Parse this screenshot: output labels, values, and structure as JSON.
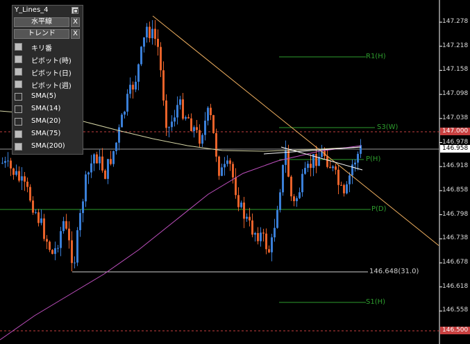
{
  "panel": {
    "title": "Y_Lines_4",
    "buttons": [
      {
        "label": "水平線",
        "close": "X"
      },
      {
        "label": "トレンド",
        "close": "X"
      }
    ],
    "indicators": [
      {
        "label": "キリ番",
        "checked": true
      },
      {
        "label": "ピボット(時)",
        "checked": true
      },
      {
        "label": "ピボット(日)",
        "checked": true
      },
      {
        "label": "ピボット(週)",
        "checked": true
      },
      {
        "label": "SMA(5)",
        "checked": false
      },
      {
        "label": "SMA(14)",
        "checked": false
      },
      {
        "label": "SMA(20)",
        "checked": false
      },
      {
        "label": "SMA(75)",
        "checked": true
      },
      {
        "label": "SMA(200)",
        "checked": true
      }
    ]
  },
  "price_axis": {
    "ticks": [
      "147.278",
      "147.218",
      "147.158",
      "147.098",
      "147.038",
      "146.978",
      "146.918",
      "146.858",
      "146.798",
      "146.738",
      "146.678",
      "146.618",
      "146.558"
    ],
    "current_price": "146.958",
    "alert_high": "147.000",
    "alert_low": "146.500"
  },
  "lines": {
    "r1_hour": "R1(H)",
    "s3_week": "S3(W)",
    "p_hour": "P(H)",
    "p_day": "P(D)",
    "low_marker": "146.648(31.0)",
    "s1_hour": "S1(H)"
  },
  "colors": {
    "bull": "#3a7fd8",
    "bear": "#e8622a",
    "pivot": "#2e9e2e",
    "sma75": "#d8d8a8",
    "sma200": "#c050c0",
    "trend": "#f0b060",
    "alert": "#c84040"
  }
}
